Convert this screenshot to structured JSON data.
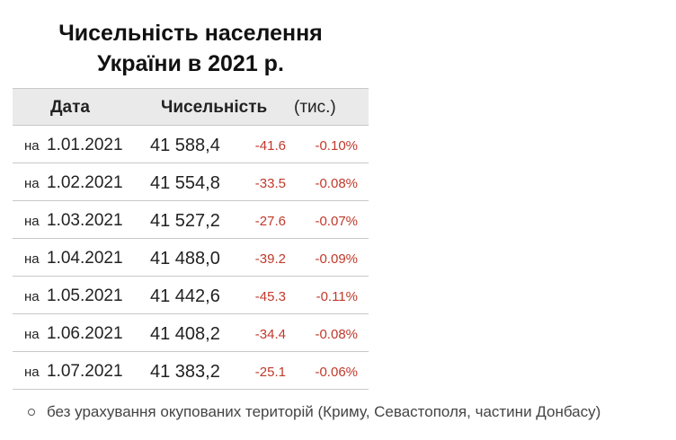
{
  "title": [
    "Чисельність населення",
    "України в 2021 р."
  ],
  "table": {
    "header": {
      "date": "Дата",
      "count": "Чисельність",
      "unit": "(тис.)"
    },
    "rows": [
      {
        "prefix": "на",
        "date": "1.01.2021",
        "value": "41 588,4",
        "change": "-41.6",
        "percent": "-0.10%"
      },
      {
        "prefix": "на",
        "date": "1.02.2021",
        "value": "41 554,8",
        "change": "-33.5",
        "percent": "-0.08%"
      },
      {
        "prefix": "на",
        "date": "1.03.2021",
        "value": "41 527,2",
        "change": "-27.6",
        "percent": "-0.07%"
      },
      {
        "prefix": "на",
        "date": "1.04.2021",
        "value": "41 488,0",
        "change": "-39.2",
        "percent": "-0.09%"
      },
      {
        "prefix": "на",
        "date": "1.05.2021",
        "value": "41 442,6",
        "change": "-45.3",
        "percent": "-0.11%"
      },
      {
        "prefix": "на",
        "date": "1.06.2021",
        "value": "41 408,2",
        "change": "-34.4",
        "percent": "-0.08%"
      },
      {
        "prefix": "на",
        "date": "1.07.2021",
        "value": "41 383,2",
        "change": "-25.1",
        "percent": "-0.06%"
      }
    ]
  },
  "note": "без урахування окупованих територій (Криму, Севастополя, частини Донбасу)"
}
